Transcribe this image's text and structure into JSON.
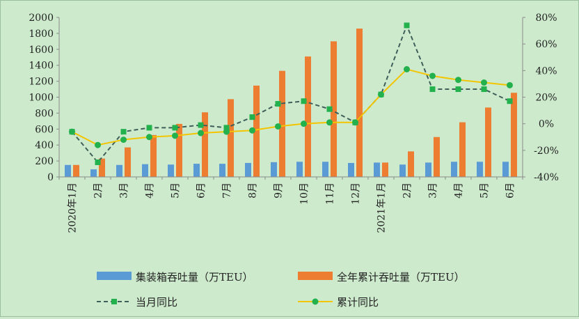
{
  "chart_data": {
    "type": "bar",
    "categories": [
      "2020年1月",
      "2月",
      "3月",
      "4月",
      "5月",
      "6月",
      "7月",
      "8月",
      "9月",
      "10月",
      "11月",
      "12月",
      "2021年1月",
      "2月",
      "3月",
      "4月",
      "5月",
      "6月"
    ],
    "series": [
      {
        "name": "集装箱吞吐量（万TEU）",
        "type": "bar",
        "axis": "left",
        "color": "#5b9bd5",
        "values": [
          150,
          95,
          150,
          160,
          155,
          165,
          165,
          175,
          185,
          190,
          190,
          175,
          180,
          155,
          180,
          190,
          190,
          190
        ]
      },
      {
        "name": "全年累计吞吐量（万TEU）",
        "type": "bar",
        "axis": "left",
        "color": "#ed7d31",
        "values": [
          150,
          230,
          370,
          525,
          665,
          810,
          975,
          1145,
          1330,
          1510,
          1700,
          1860,
          180,
          320,
          500,
          685,
          870,
          1055
        ]
      },
      {
        "name": "当月同比",
        "type": "line",
        "axis": "right",
        "style": "dashed",
        "marker": "square",
        "color": "#3f5f5a",
        "marker_color": "#22b14c",
        "values": [
          -6,
          -29,
          -6,
          -3,
          -3,
          -1,
          -3,
          5,
          15,
          17,
          11,
          1,
          22,
          74,
          26,
          26,
          26,
          17
        ]
      },
      {
        "name": "累计同比",
        "type": "line",
        "axis": "right",
        "style": "solid",
        "marker": "circle",
        "color": "#f2c500",
        "marker_color": "#22b14c",
        "values": [
          -6,
          -16,
          -12,
          -10,
          -9,
          -7,
          -6,
          -5,
          -2,
          0,
          1,
          1,
          22,
          41,
          36,
          33,
          31,
          29
        ]
      }
    ],
    "y_left": {
      "min": 0,
      "max": 2000,
      "step": 200,
      "ticks": [
        "0",
        "200",
        "400",
        "600",
        "800",
        "1000",
        "1200",
        "1400",
        "1600",
        "1800",
        "2000"
      ]
    },
    "y_right": {
      "min": -40,
      "max": 80,
      "step": 20,
      "ticks": [
        "-40%",
        "-20%",
        "0%",
        "20%",
        "40%",
        "60%",
        "80%"
      ]
    },
    "grid": false,
    "legend_position": "bottom"
  }
}
